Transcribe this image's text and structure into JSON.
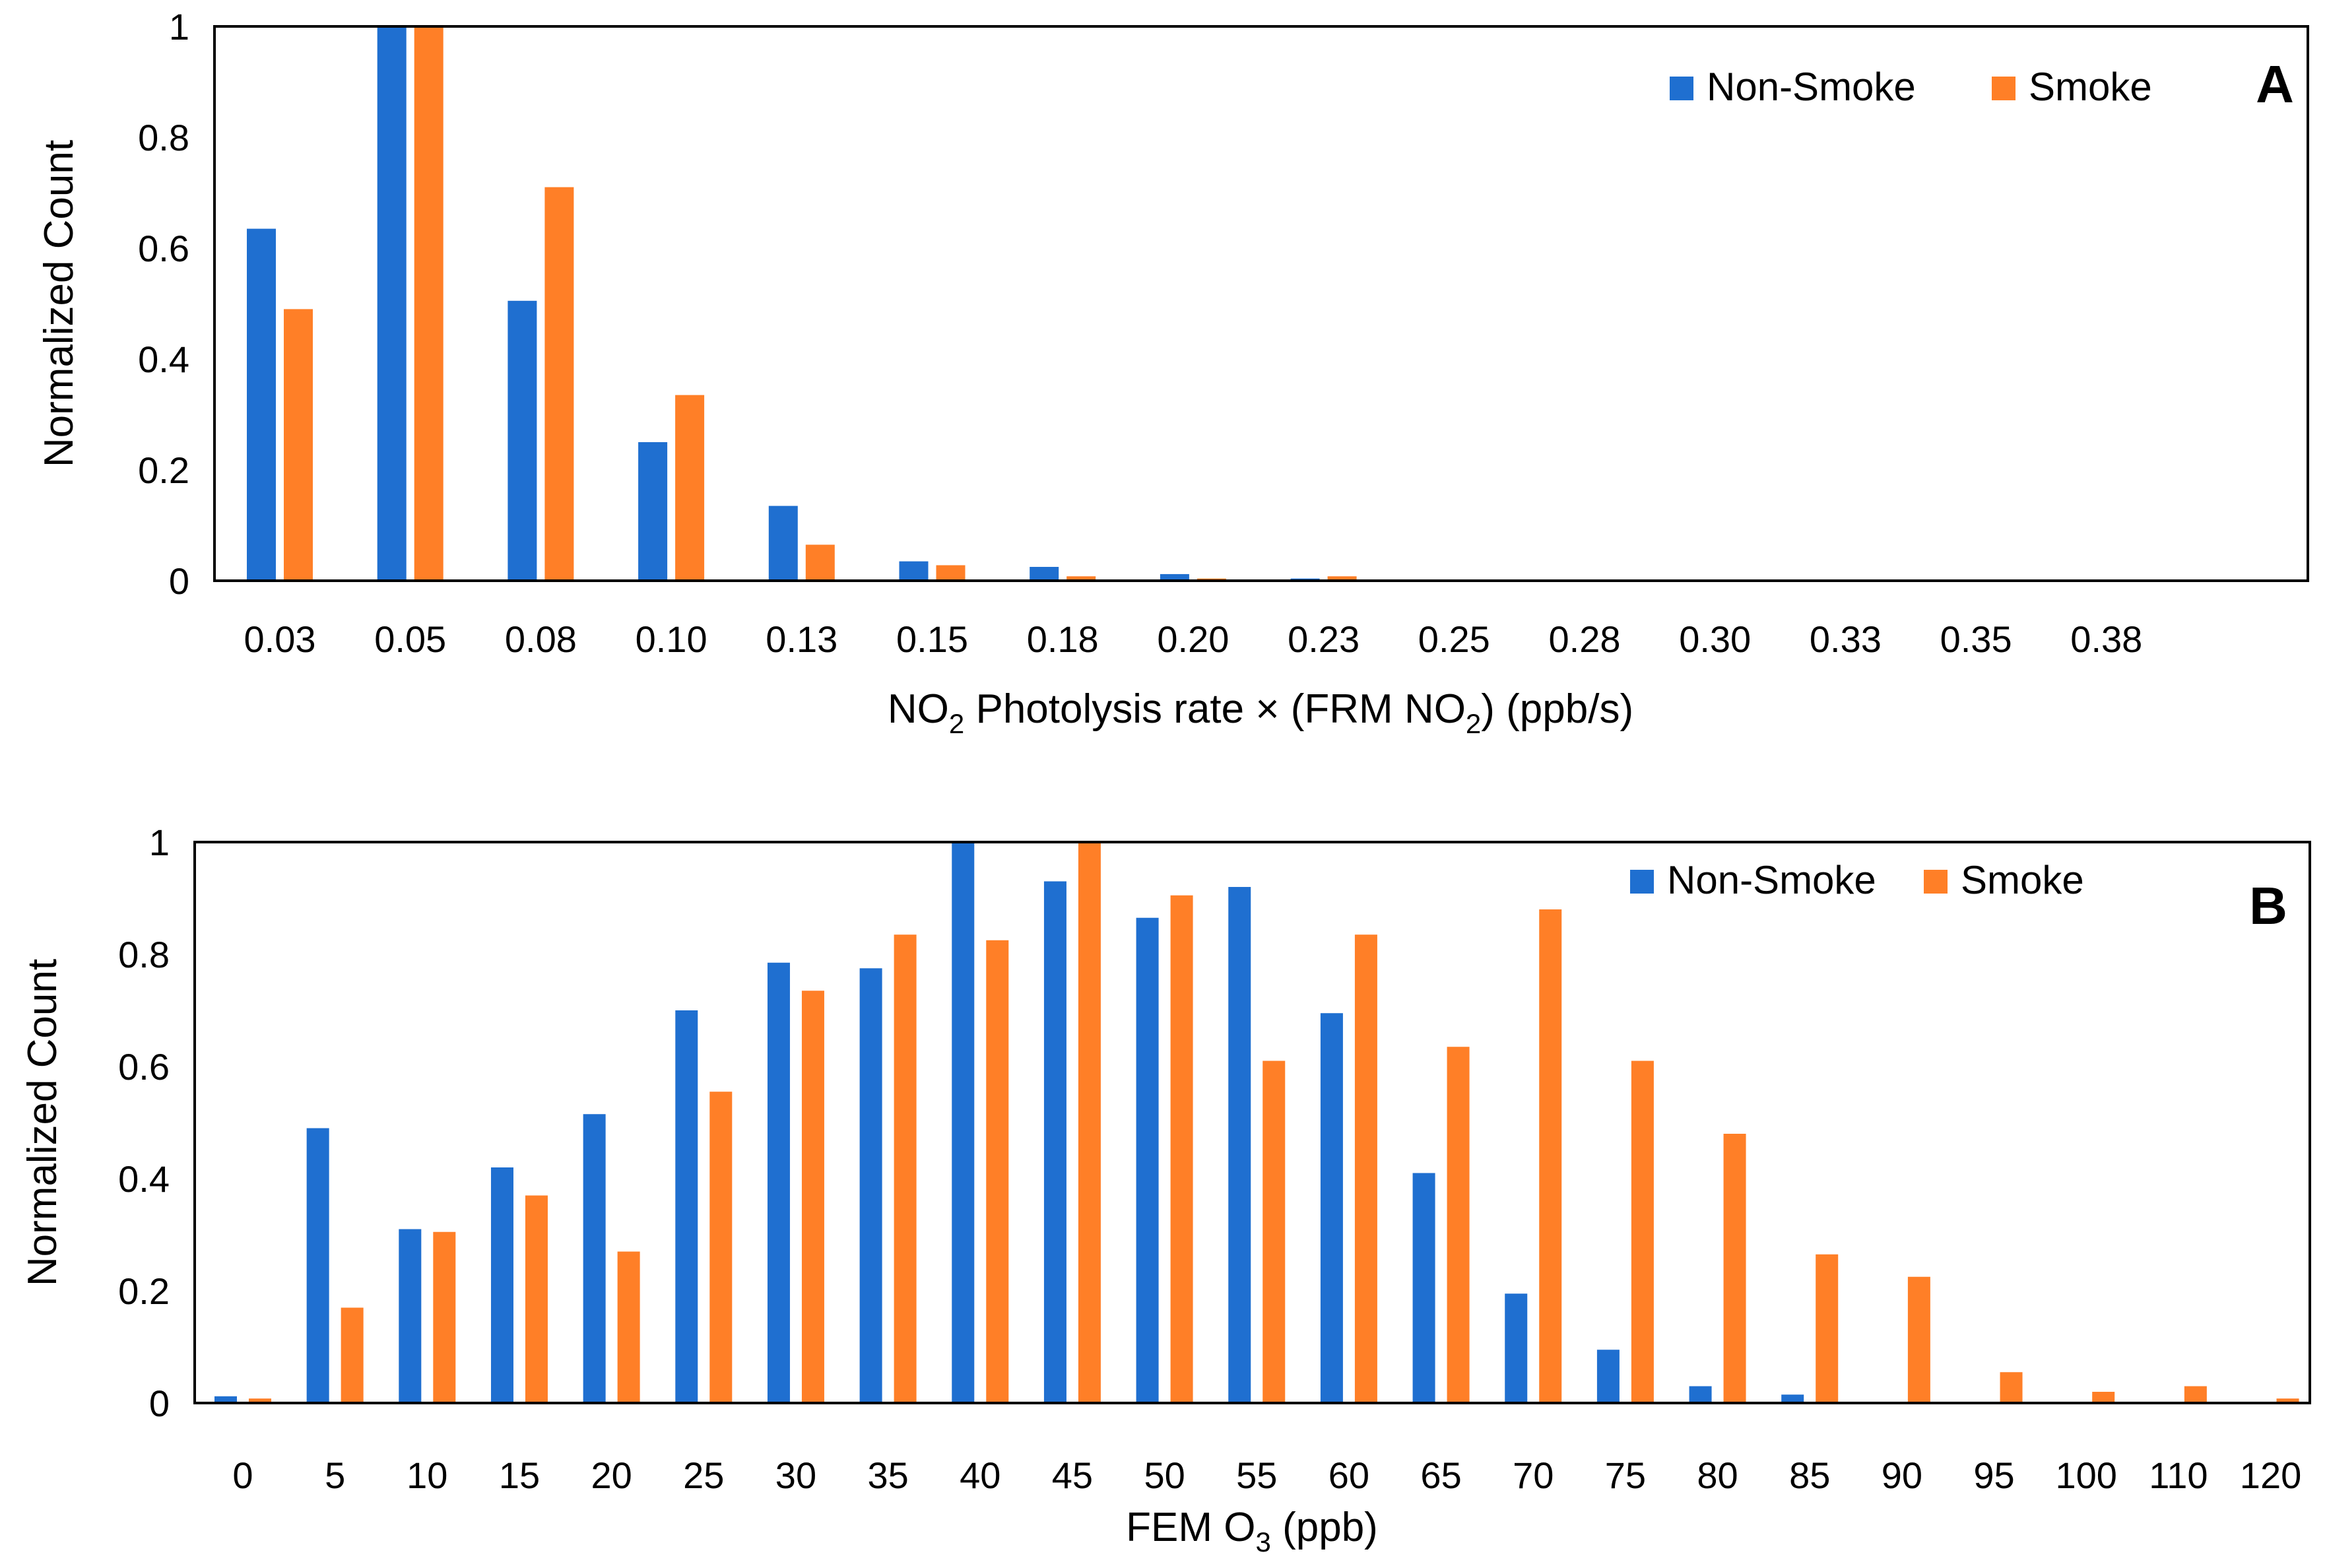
{
  "chart_data": [
    {
      "panel_label": "A",
      "type": "bar",
      "categories": [
        "0.03",
        "0.05",
        "0.08",
        "0.10",
        "0.13",
        "0.15",
        "0.18",
        "0.20",
        "0.23",
        "0.25",
        "0.28",
        "0.30",
        "0.33",
        "0.35",
        "0.38"
      ],
      "series": [
        {
          "name": "Non-Smoke",
          "color": "#1f6fd0",
          "values": [
            0.635,
            1.0,
            0.505,
            0.25,
            0.135,
            0.035,
            0.025,
            0.012,
            0.004,
            0,
            0,
            0,
            0,
            0,
            0
          ]
        },
        {
          "name": "Smoke",
          "color": "#ff7f27",
          "values": [
            0.49,
            1.0,
            0.71,
            0.335,
            0.065,
            0.028,
            0.008,
            0.004,
            0.008,
            0,
            0,
            0,
            0,
            0,
            0
          ]
        }
      ],
      "xlabel_parts": [
        "NO",
        "2",
        " Photolysis rate × (FRM NO",
        "2",
        ") (ppb/s)"
      ],
      "ylabel": "Normalized Count",
      "yticks": [
        "0",
        "0.2",
        "0.4",
        "0.6",
        "0.8",
        "1"
      ],
      "ylim": [
        0,
        1
      ],
      "legend_position": "top-right"
    },
    {
      "panel_label": "B",
      "type": "bar",
      "categories": [
        "0",
        "5",
        "10",
        "15",
        "20",
        "25",
        "30",
        "35",
        "40",
        "45",
        "50",
        "55",
        "60",
        "65",
        "70",
        "75",
        "80",
        "85",
        "90",
        "95",
        "100",
        "110",
        "120"
      ],
      "series": [
        {
          "name": "Non-Smoke",
          "color": "#1f6fd0",
          "values": [
            0.012,
            0.49,
            0.31,
            0.42,
            0.515,
            0.7,
            0.785,
            0.775,
            1.0,
            0.93,
            0.865,
            0.92,
            0.695,
            0.41,
            0.195,
            0.095,
            0.03,
            0.015,
            0,
            0,
            0,
            0,
            0
          ]
        },
        {
          "name": "Smoke",
          "color": "#ff7f27",
          "values": [
            0.008,
            0.17,
            0.305,
            0.37,
            0.27,
            0.555,
            0.735,
            0.835,
            0.825,
            1.0,
            0.905,
            0.61,
            0.835,
            0.635,
            0.88,
            0.61,
            0.48,
            0.265,
            0.225,
            0.055,
            0.02,
            0.03,
            0.008
          ]
        }
      ],
      "xlabel_parts": [
        "FEM O",
        "3",
        " (ppb)"
      ],
      "ylabel": "Normalized Count",
      "yticks": [
        "0",
        "0.2",
        "0.4",
        "0.6",
        "0.8",
        "1"
      ],
      "ylim": [
        0,
        1
      ],
      "legend_position": "top-right"
    }
  ]
}
